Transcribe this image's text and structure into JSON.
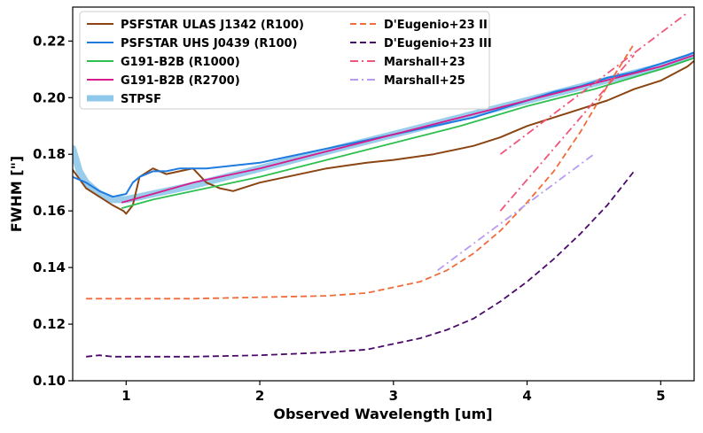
{
  "chart_data": {
    "type": "line",
    "xlabel": "Observed Wavelength [um]",
    "ylabel": "FWHM [\"]",
    "xlim": [
      0.6,
      5.25
    ],
    "ylim": [
      0.1,
      0.232
    ],
    "xticks": [
      1,
      2,
      3,
      4,
      5
    ],
    "yticks": [
      0.1,
      0.12,
      0.14,
      0.16,
      0.18,
      0.2,
      0.22
    ],
    "ytick_labels": [
      "0.10",
      "0.12",
      "0.14",
      "0.16",
      "0.18",
      "0.20",
      "0.22"
    ],
    "grid": false,
    "legend_position": "top-left",
    "series": [
      {
        "name": "PSFSTAR ULAS J1342 (R100)",
        "color": "#8B4513",
        "style": "solid",
        "width": 2,
        "x": [
          0.6,
          0.7,
          0.8,
          0.9,
          0.98,
          1.0,
          1.05,
          1.1,
          1.2,
          1.3,
          1.4,
          1.5,
          1.6,
          1.7,
          1.8,
          2.0,
          2.2,
          2.5,
          2.8,
          3.0,
          3.3,
          3.6,
          3.8,
          4.0,
          4.2,
          4.4,
          4.6,
          4.8,
          5.0,
          5.2,
          5.25
        ],
        "y": [
          0.1745,
          0.168,
          0.165,
          0.162,
          0.16,
          0.159,
          0.162,
          0.172,
          0.175,
          0.173,
          0.174,
          0.175,
          0.17,
          0.168,
          0.167,
          0.17,
          0.172,
          0.175,
          0.177,
          0.178,
          0.18,
          0.183,
          0.186,
          0.19,
          0.193,
          0.196,
          0.199,
          0.203,
          0.206,
          0.211,
          0.213
        ]
      },
      {
        "name": "PSFSTAR UHS J0439 (R100)",
        "color": "#1E7BE0",
        "style": "solid",
        "width": 2,
        "x": [
          0.6,
          0.7,
          0.8,
          0.9,
          1.0,
          1.05,
          1.1,
          1.2,
          1.3,
          1.4,
          1.6,
          1.8,
          2.0,
          2.2,
          2.5,
          2.8,
          3.0,
          3.3,
          3.6,
          3.8,
          4.0,
          4.2,
          4.4,
          4.6,
          4.8,
          5.0,
          5.2,
          5.25
        ],
        "y": [
          0.172,
          0.17,
          0.167,
          0.165,
          0.166,
          0.17,
          0.172,
          0.174,
          0.174,
          0.175,
          0.175,
          0.176,
          0.177,
          0.179,
          0.182,
          0.185,
          0.187,
          0.19,
          0.193,
          0.196,
          0.199,
          0.202,
          0.204,
          0.207,
          0.209,
          0.212,
          0.215,
          0.216
        ]
      },
      {
        "name": "G191-B2B (R1000)",
        "color": "#2EBF4F",
        "style": "solid",
        "width": 1.8,
        "x": [
          0.97,
          1.2,
          1.5,
          2.0,
          2.5,
          3.0,
          3.5,
          4.0,
          4.5,
          5.0,
          5.25
        ],
        "y": [
          0.161,
          0.164,
          0.167,
          0.172,
          0.178,
          0.184,
          0.19,
          0.197,
          0.203,
          0.21,
          0.214
        ]
      },
      {
        "name": "G191-B2B (R2700)",
        "color": "#D81B8C",
        "style": "solid",
        "width": 1.8,
        "x": [
          0.97,
          1.2,
          1.5,
          2.0,
          2.5,
          3.0,
          3.5,
          4.0,
          4.5,
          5.0,
          5.25
        ],
        "y": [
          0.163,
          0.166,
          0.17,
          0.175,
          0.181,
          0.187,
          0.193,
          0.199,
          0.205,
          0.211,
          0.215
        ]
      },
      {
        "name": "STPSF",
        "color": "#8FC8EA",
        "style": "solid",
        "width": 8,
        "x": [
          0.6,
          0.65,
          0.7,
          0.8,
          0.9,
          1.0,
          1.2,
          1.5,
          2.0,
          2.5,
          3.0,
          3.5,
          4.0,
          4.5,
          5.0,
          5.25
        ],
        "y": [
          0.182,
          0.174,
          0.17,
          0.166,
          0.164,
          0.164,
          0.166,
          0.169,
          0.175,
          0.181,
          0.187,
          0.193,
          0.199,
          0.205,
          0.211,
          0.215
        ]
      },
      {
        "name": "D'Eugenio+23 II",
        "color": "#F26B3A",
        "style": "dashed",
        "width": 1.8,
        "x": [
          0.7,
          1.0,
          1.5,
          2.0,
          2.5,
          2.8,
          3.0,
          3.2,
          3.4,
          3.6,
          3.8,
          4.0,
          4.2,
          4.4,
          4.6,
          4.8
        ],
        "y": [
          0.129,
          0.129,
          0.129,
          0.1295,
          0.13,
          0.131,
          0.133,
          0.135,
          0.139,
          0.145,
          0.153,
          0.163,
          0.174,
          0.188,
          0.204,
          0.219
        ]
      },
      {
        "name": "D'Eugenio+23 III",
        "color": "#4B0A6B",
        "style": "dashed",
        "width": 1.8,
        "x": [
          0.7,
          0.8,
          0.9,
          1.0,
          1.5,
          2.0,
          2.5,
          2.8,
          3.0,
          3.2,
          3.4,
          3.6,
          3.8,
          4.0,
          4.2,
          4.4,
          4.6,
          4.8
        ],
        "y": [
          0.1085,
          0.109,
          0.1085,
          0.1085,
          0.1085,
          0.109,
          0.11,
          0.111,
          0.113,
          0.115,
          0.118,
          0.122,
          0.128,
          0.135,
          0.143,
          0.152,
          0.162,
          0.174
        ]
      },
      {
        "name": "Marshall+23",
        "color": "#F0557A",
        "style": "dashdot",
        "width": 1.8,
        "segments": [
          {
            "x": [
              3.8,
              4.8
            ],
            "y": [
              0.16,
              0.215
            ]
          },
          {
            "x": [
              3.8,
              5.2
            ],
            "y": [
              0.18,
              0.23
            ]
          }
        ]
      },
      {
        "name": "Marshall+25",
        "color": "#B79BF0",
        "style": "dashdot",
        "width": 1.8,
        "x": [
          3.33,
          4.5
        ],
        "y": [
          0.139,
          0.18
        ]
      }
    ]
  }
}
